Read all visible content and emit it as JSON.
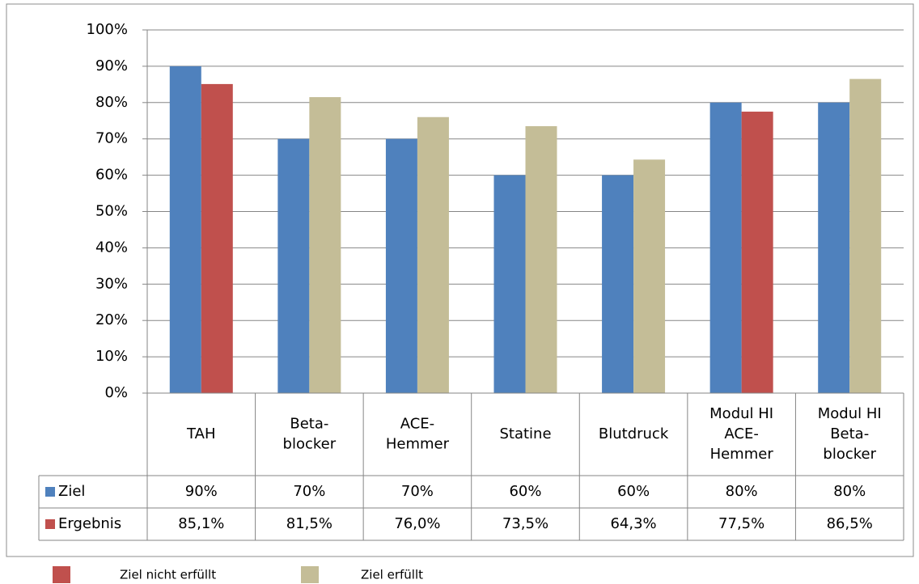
{
  "chart_data": {
    "type": "bar",
    "categories": [
      [
        "TAH"
      ],
      [
        "Beta-",
        "blocker"
      ],
      [
        "ACE-",
        "Hemmer"
      ],
      [
        "Statine"
      ],
      [
        "Blutdruck"
      ],
      [
        "Modul HI",
        "ACE-",
        "Hemmer"
      ],
      [
        "Modul HI",
        "Beta-",
        "blocker"
      ]
    ],
    "series": [
      {
        "name": "Ziel",
        "color": "#4f81bd",
        "values": [
          90,
          70,
          70,
          60,
          60,
          80,
          80
        ],
        "value_labels": [
          "90%",
          "70%",
          "70%",
          "60%",
          "60%",
          "80%",
          "80%"
        ]
      },
      {
        "name": "Ergebnis",
        "color": "#c0504d",
        "values": [
          85.1,
          81.5,
          76.0,
          73.5,
          64.3,
          77.5,
          86.5
        ],
        "value_labels": [
          "85,1%",
          "81,5%",
          "76,0%",
          "73,5%",
          "64,3%",
          "77,5%",
          "86,5%"
        ],
        "colors": [
          "#c0504d",
          "#c4bd97",
          "#c4bd97",
          "#c4bd97",
          "#c4bd97",
          "#c0504d",
          "#c4bd97"
        ]
      }
    ],
    "ylim": [
      0,
      100
    ],
    "yticks": [
      {
        "value": 0,
        "label": "0%"
      },
      {
        "value": 10,
        "label": "10%"
      },
      {
        "value": 20,
        "label": "20%"
      },
      {
        "value": 30,
        "label": "30%"
      },
      {
        "value": 40,
        "label": "40%"
      },
      {
        "value": 50,
        "label": "50%"
      },
      {
        "value": 60,
        "label": "60%"
      },
      {
        "value": 70,
        "label": "70%"
      },
      {
        "value": 80,
        "label": "80%"
      },
      {
        "value": 90,
        "label": "90%"
      },
      {
        "value": 100,
        "label": "100%"
      }
    ],
    "grid": true,
    "status_legend": [
      {
        "label": "Ziel nicht erfüllt",
        "color": "#c0504d"
      },
      {
        "label": "Ziel erfüllt",
        "color": "#c4bd97"
      }
    ]
  }
}
